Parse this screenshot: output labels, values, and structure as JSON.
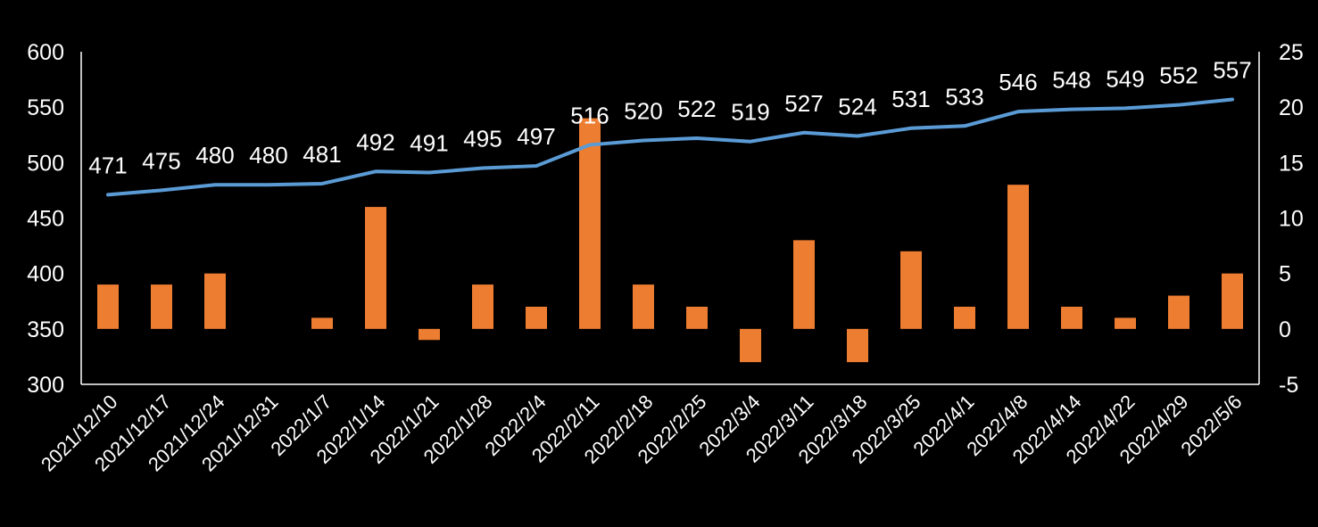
{
  "chart_data": {
    "type": "bar+line",
    "categories": [
      "2021/12/10",
      "2021/12/17",
      "2021/12/24",
      "2021/12/31",
      "2022/1/7",
      "2022/1/14",
      "2022/1/21",
      "2022/1/28",
      "2022/2/4",
      "2022/2/11",
      "2022/2/18",
      "2022/2/25",
      "2022/3/4",
      "2022/3/11",
      "2022/3/18",
      "2022/3/25",
      "2022/4/1",
      "2022/4/8",
      "2022/4/14",
      "2022/4/22",
      "2022/4/29",
      "2022/5/6"
    ],
    "line_series": {
      "name": "",
      "axis": "left",
      "color": "#5b9bd5",
      "values": [
        471,
        475,
        480,
        480,
        481,
        492,
        491,
        495,
        497,
        516,
        520,
        522,
        519,
        527,
        524,
        531,
        533,
        546,
        548,
        549,
        552,
        557
      ],
      "labels": [
        "471",
        "475",
        "480",
        "480",
        "481",
        "492",
        "491",
        "495",
        "497",
        "516",
        "520",
        "522",
        "519",
        "527",
        "524",
        "531",
        "533",
        "546",
        "548",
        "549",
        "552",
        "557"
      ]
    },
    "bar_series": {
      "name": "",
      "axis": "right",
      "color": "#ed7d31",
      "values": [
        4,
        4,
        5,
        0,
        1,
        11,
        -1,
        4,
        2,
        19,
        4,
        2,
        -3,
        8,
        -3,
        7,
        2,
        13,
        2,
        1,
        3,
        5
      ]
    },
    "left_axis": {
      "min": 300,
      "max": 600,
      "ticks": [
        "300",
        "350",
        "400",
        "450",
        "500",
        "550",
        "600"
      ]
    },
    "right_axis": {
      "min": -5,
      "max": 25,
      "ticks": [
        "-5",
        "0",
        "5",
        "10",
        "15",
        "20",
        "25"
      ]
    },
    "title": "",
    "xlabel": "",
    "ylabel": ""
  }
}
